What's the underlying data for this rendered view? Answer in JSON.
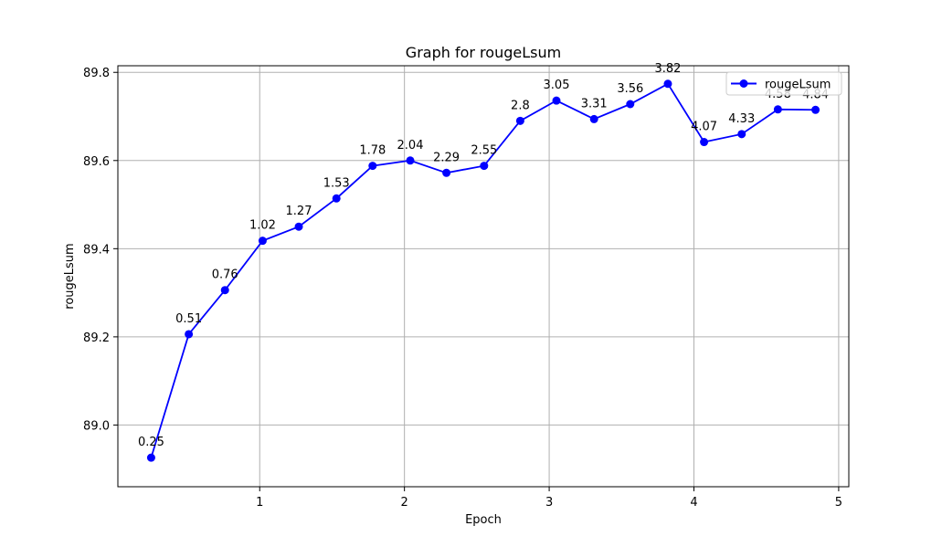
{
  "chart_data": {
    "type": "line",
    "title": "Graph for rougeLsum",
    "xlabel": "Epoch",
    "ylabel": "rougeLsum",
    "xlim": [
      0.02,
      5.07
    ],
    "ylim": [
      88.86,
      89.815
    ],
    "xticks": [
      1,
      2,
      3,
      4,
      5
    ],
    "yticks": [
      89.0,
      89.2,
      89.4,
      89.6,
      89.8
    ],
    "xtick_labels": [
      "1",
      "2",
      "3",
      "4",
      "5"
    ],
    "ytick_labels": [
      "89.0",
      "89.2",
      "89.4",
      "89.6",
      "89.8"
    ],
    "grid": true,
    "legend": {
      "position": "top-right",
      "entries": [
        "rougeLsum"
      ]
    },
    "series": [
      {
        "name": "rougeLsum",
        "color": "#0000ff",
        "marker": "circle",
        "x": [
          0.25,
          0.51,
          0.76,
          1.02,
          1.27,
          1.53,
          1.78,
          2.04,
          2.29,
          2.55,
          2.8,
          3.05,
          3.31,
          3.56,
          3.82,
          4.07,
          4.33,
          4.58,
          4.84
        ],
        "y": [
          88.926,
          89.206,
          89.306,
          89.418,
          89.45,
          89.514,
          89.588,
          89.6,
          89.572,
          89.588,
          89.69,
          89.736,
          89.694,
          89.728,
          89.774,
          89.642,
          89.66,
          89.716,
          89.715
        ],
        "point_labels": [
          "0.25",
          "0.51",
          "0.76",
          "1.02",
          "1.27",
          "1.53",
          "1.78",
          "2.04",
          "2.29",
          "2.55",
          "2.8",
          "3.05",
          "3.31",
          "3.56",
          "3.82",
          "4.07",
          "4.33",
          "4.58",
          "4.84"
        ]
      }
    ]
  }
}
